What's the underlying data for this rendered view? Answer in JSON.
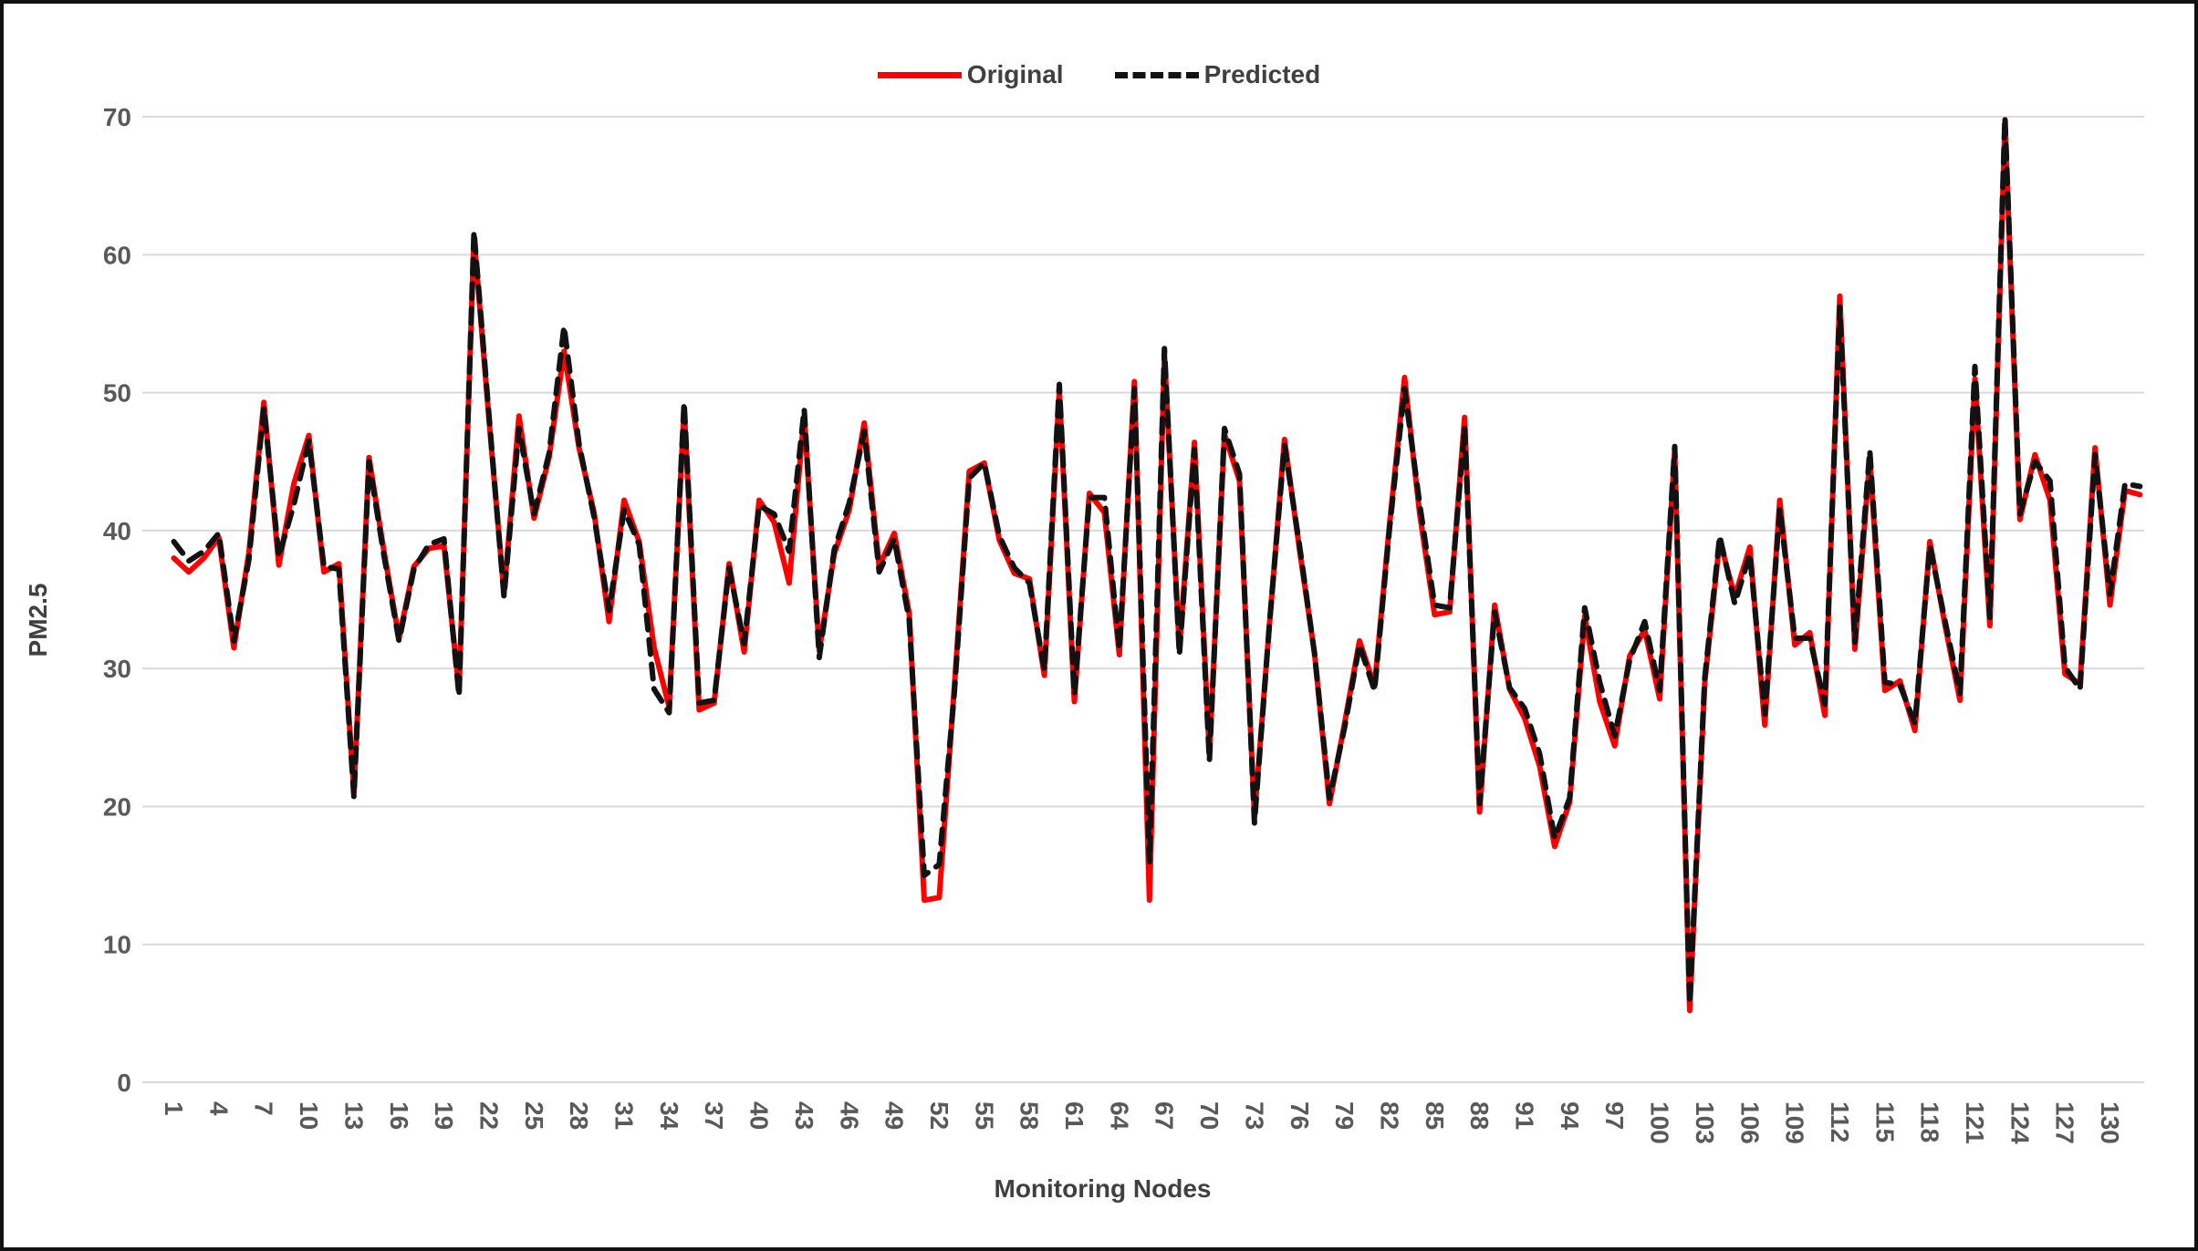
{
  "chart_data": {
    "type": "line",
    "title": "",
    "xlabel": "Monitoring Nodes",
    "ylabel": "PM2.5",
    "ylim": [
      0,
      70
    ],
    "y_ticks": [
      0,
      10,
      20,
      30,
      40,
      50,
      60,
      70
    ],
    "x_tick_labels": [
      "1",
      "4",
      "7",
      "10",
      "13",
      "16",
      "19",
      "22",
      "25",
      "28",
      "31",
      "34",
      "37",
      "40",
      "43",
      "46",
      "49",
      "52",
      "55",
      "58",
      "61",
      "64",
      "67",
      "70",
      "73",
      "76",
      "79",
      "82",
      "85",
      "88",
      "91",
      "94",
      "97",
      "100",
      "103",
      "106",
      "109",
      "112",
      "115",
      "118",
      "121",
      "124",
      "127",
      "130"
    ],
    "x_tick_step": 3,
    "n_points": 132,
    "grid": "horizontal",
    "legend_position": "top-center",
    "series": [
      {
        "name": "Original",
        "color": "#ff0000",
        "style": "solid",
        "values": [
          38.0,
          37.0,
          38.0,
          39.5,
          31.5,
          38.4,
          49.3,
          37.5,
          43.4,
          46.9,
          37.0,
          37.6,
          21.0,
          45.3,
          38.5,
          32.2,
          37.4,
          38.7,
          38.9,
          28.4,
          61.3,
          48.0,
          35.4,
          48.3,
          40.9,
          45.3,
          53.0,
          46.0,
          41.3,
          33.4,
          42.2,
          39.2,
          31.5,
          27.2,
          48.9,
          27.0,
          27.5,
          37.6,
          31.2,
          42.2,
          40.6,
          36.2,
          48.3,
          31.3,
          38.3,
          41.5,
          47.8,
          37.4,
          39.8,
          34.0,
          13.2,
          13.4,
          28.6,
          44.3,
          44.9,
          39.3,
          36.9,
          36.5,
          29.5,
          50.2,
          27.6,
          42.7,
          41.3,
          31.0,
          50.8,
          13.2,
          52.8,
          31.4,
          46.4,
          23.8,
          47.0,
          43.6,
          19.2,
          33.2,
          46.6,
          38.6,
          31.1,
          20.2,
          26.0,
          32.0,
          28.7,
          40.5,
          51.1,
          41.3,
          33.9,
          34.1,
          48.2,
          19.6,
          34.6,
          28.5,
          26.4,
          22.9,
          17.1,
          20.3,
          33.8,
          27.6,
          24.4,
          30.9,
          32.8,
          27.8,
          45.8,
          5.2,
          29.0,
          39.3,
          35.2,
          38.8,
          25.9,
          42.2,
          31.7,
          32.6,
          26.6,
          57.0,
          31.4,
          45.2,
          28.4,
          29.1,
          25.5,
          39.2,
          33.2,
          27.7,
          51.0,
          33.1,
          69.5,
          40.8,
          45.5,
          42.2,
          29.6,
          28.9,
          46.0,
          34.6,
          42.9,
          42.6
        ]
      },
      {
        "name": "Predicted",
        "color": "#121212",
        "style": "dashed",
        "values": [
          39.2,
          37.8,
          38.5,
          39.8,
          32.0,
          37.9,
          48.9,
          38.1,
          41.9,
          46.5,
          37.4,
          37.2,
          20.7,
          45.0,
          38.2,
          32.0,
          37.2,
          39.0,
          39.4,
          28.0,
          61.7,
          48.3,
          35.2,
          47.4,
          41.2,
          45.6,
          54.8,
          46.3,
          41.0,
          34.2,
          41.5,
          39.0,
          28.5,
          26.8,
          49.3,
          27.5,
          27.7,
          37.3,
          31.8,
          41.8,
          41.2,
          38.5,
          48.8,
          30.8,
          38.6,
          42.0,
          47.2,
          37.0,
          39.4,
          33.5,
          15.0,
          15.8,
          28.2,
          43.8,
          44.9,
          39.6,
          37.3,
          36.2,
          29.9,
          50.6,
          28.1,
          42.4,
          42.4,
          31.4,
          50.3,
          16.0,
          53.2,
          31.0,
          45.9,
          23.3,
          47.4,
          44.1,
          18.8,
          33.2,
          46.2,
          38.9,
          31.1,
          20.6,
          25.7,
          31.7,
          28.4,
          40.2,
          50.3,
          42.0,
          34.6,
          34.4,
          47.5,
          20.2,
          34.1,
          28.6,
          27.1,
          23.8,
          17.7,
          20.6,
          34.4,
          29.0,
          25.1,
          30.6,
          33.4,
          28.4,
          46.1,
          5.7,
          29.3,
          39.6,
          34.7,
          38.3,
          26.7,
          41.6,
          32.2,
          32.2,
          27.4,
          56.2,
          31.9,
          45.8,
          29.0,
          28.8,
          26.0,
          38.9,
          33.5,
          28.2,
          51.9,
          33.7,
          70.0,
          41.2,
          45.0,
          43.6,
          30.1,
          28.5,
          45.5,
          35.4,
          43.4,
          43.2
        ]
      }
    ]
  },
  "legend": {
    "original_label": "Original",
    "predicted_label": "Predicted"
  },
  "axes": {
    "y_title": "PM2.5",
    "x_title": "Monitoring Nodes"
  },
  "colors": {
    "original": "#ff0000",
    "predicted": "#121212",
    "gridline": "#d9d9d9",
    "tick_text": "#595959",
    "axis_title_text": "#404040",
    "frame_border": "#111111"
  }
}
